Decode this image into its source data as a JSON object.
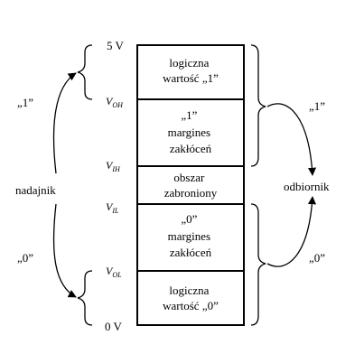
{
  "levels": {
    "v5": "5 V",
    "voh": {
      "base": "V",
      "sub": "OH"
    },
    "vih": {
      "base": "V",
      "sub": "IH"
    },
    "vil": {
      "base": "V",
      "sub": "IL"
    },
    "vol": {
      "base": "V",
      "sub": "OL"
    },
    "v0": "0 V"
  },
  "boxes": {
    "logic1": [
      "logiczna",
      "wartość „1”"
    ],
    "margin1": [
      "„1”",
      "margines",
      "zakłóceń"
    ],
    "forbidden": [
      "obszar",
      "zabroniony"
    ],
    "margin0": [
      "„0”",
      "margines",
      "zakłóceń"
    ],
    "logic0": [
      "logiczna",
      "wartość „0”"
    ]
  },
  "left": {
    "one": "„1”",
    "transmitter": "nadajnik",
    "zero": "„0”"
  },
  "right": {
    "one": "„1”",
    "receiver": "odbiornik",
    "zero": "„0”"
  }
}
